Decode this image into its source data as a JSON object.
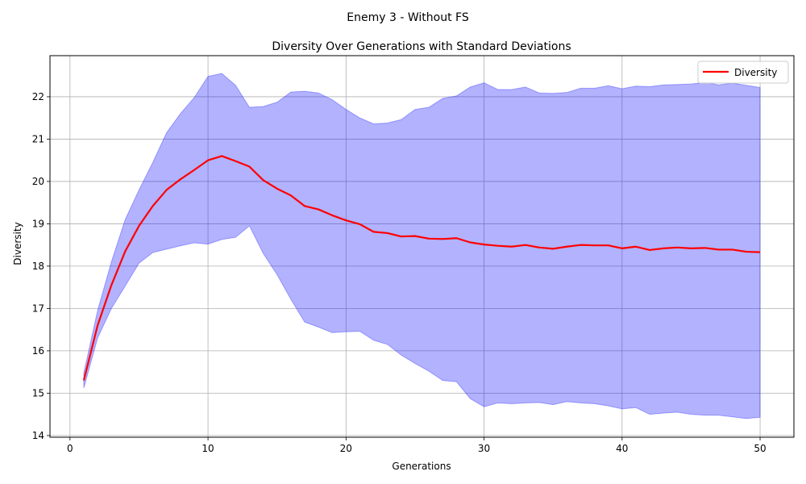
{
  "suptitle": "Enemy 3 - Without FS",
  "chart_data": {
    "type": "line",
    "title": "Diversity Over Generations with Standard Deviations",
    "xlabel": "Generations",
    "ylabel": "Diversity",
    "xlim": [
      -1.45,
      52.45
    ],
    "ylim": [
      13.96,
      22.97
    ],
    "xticks": [
      0,
      10,
      20,
      30,
      40,
      50
    ],
    "yticks": [
      14,
      15,
      16,
      17,
      18,
      19,
      20,
      21,
      22
    ],
    "grid": true,
    "legend_position": "top-right",
    "line_color": "#ff0000",
    "band_color": "#0000ff",
    "series": [
      {
        "name": "Diversity",
        "x": [
          1,
          2,
          3,
          4,
          5,
          6,
          7,
          8,
          9,
          10,
          11,
          12,
          13,
          14,
          15,
          16,
          17,
          18,
          19,
          20,
          21,
          22,
          23,
          24,
          25,
          26,
          27,
          28,
          29,
          30,
          31,
          32,
          33,
          34,
          35,
          36,
          37,
          38,
          39,
          40,
          41,
          42,
          43,
          44,
          45,
          46,
          47,
          48,
          49,
          50
        ],
        "values": [
          15.3,
          16.6,
          17.55,
          18.35,
          18.95,
          19.42,
          19.8,
          20.05,
          20.27,
          20.5,
          20.6,
          20.48,
          20.35,
          20.03,
          19.83,
          19.67,
          19.42,
          19.34,
          19.2,
          19.08,
          18.99,
          18.81,
          18.78,
          18.7,
          18.71,
          18.65,
          18.64,
          18.66,
          18.56,
          18.51,
          18.48,
          18.46,
          18.5,
          18.44,
          18.41,
          18.46,
          18.5,
          18.49,
          18.49,
          18.42,
          18.46,
          18.38,
          18.42,
          18.44,
          18.42,
          18.43,
          18.39,
          18.39,
          18.34,
          18.33
        ],
        "upper": [
          15.48,
          16.95,
          18.1,
          19.1,
          19.8,
          20.45,
          21.15,
          21.6,
          21.98,
          22.48,
          22.55,
          22.27,
          21.75,
          21.77,
          21.87,
          22.11,
          22.13,
          22.09,
          21.93,
          21.7,
          21.5,
          21.36,
          21.38,
          21.46,
          21.7,
          21.75,
          21.96,
          22.02,
          22.23,
          22.33,
          22.17,
          22.17,
          22.23,
          22.09,
          22.08,
          22.1,
          22.2,
          22.2,
          22.26,
          22.19,
          22.25,
          22.24,
          22.28,
          22.29,
          22.3,
          22.34,
          22.28,
          22.32,
          22.27,
          22.22
        ],
        "lower": [
          15.12,
          16.3,
          17.0,
          17.53,
          18.07,
          18.32,
          18.4,
          18.48,
          18.55,
          18.52,
          18.63,
          18.68,
          18.95,
          18.3,
          17.8,
          17.22,
          16.68,
          16.56,
          16.43,
          16.45,
          16.46,
          16.25,
          16.15,
          15.9,
          15.7,
          15.52,
          15.3,
          15.27,
          14.87,
          14.68,
          14.77,
          14.75,
          14.77,
          14.78,
          14.73,
          14.8,
          14.77,
          14.75,
          14.7,
          14.63,
          14.66,
          14.5,
          14.53,
          14.55,
          14.5,
          14.48,
          14.48,
          14.44,
          14.4,
          14.43
        ]
      }
    ]
  }
}
